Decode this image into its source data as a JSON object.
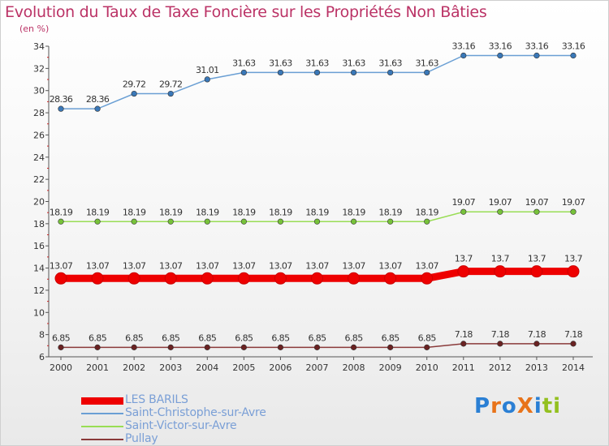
{
  "title": "Evolution du Taux de Taxe Foncière sur les Propriétés Non Bâties",
  "unit_label": "(en %)",
  "logo": {
    "text": "ProXiti",
    "letter_colors": [
      "#2a7fd4",
      "#e8731a",
      "#2a7fd4",
      "#e8731a",
      "#2a7fd4",
      "#93c01f",
      "#93c01f"
    ]
  },
  "chart_data": {
    "type": "line",
    "title": "Evolution du Taux de Taxe Foncière sur les Propriétés Non Bâties",
    "ylabel": "(en %)",
    "xlabel": "",
    "ylim": [
      6,
      34
    ],
    "yticks": [
      "6",
      "8",
      "10",
      "12",
      "14",
      "16",
      "18",
      "20",
      "22",
      "24",
      "26",
      "28",
      "30",
      "32",
      "34"
    ],
    "categories": [
      "2000",
      "2001",
      "2002",
      "2003",
      "2004",
      "2005",
      "2006",
      "2007",
      "2008",
      "2009",
      "2010",
      "2011",
      "2012",
      "2013",
      "2014"
    ],
    "series": [
      {
        "name": "LES BARILS",
        "color": "#ee0000",
        "values": [
          13.07,
          13.07,
          13.07,
          13.07,
          13.07,
          13.07,
          13.07,
          13.07,
          13.07,
          13.07,
          13.07,
          13.7,
          13.7,
          13.7,
          13.7
        ],
        "labels": [
          "13.07",
          "13.07",
          "13.07",
          "13.07",
          "13.07",
          "13.07",
          "13.07",
          "13.07",
          "13.07",
          "13.07",
          "13.07",
          "13.7",
          "13.7",
          "13.7",
          "13.7"
        ],
        "emphasis": true
      },
      {
        "name": "Saint-Christophe-sur-Avre",
        "color": "#6a9fd4",
        "marker": "#3a78b8",
        "values": [
          28.36,
          28.36,
          29.72,
          29.72,
          31.01,
          31.63,
          31.63,
          31.63,
          31.63,
          31.63,
          31.63,
          33.16,
          33.16,
          33.16,
          33.16
        ],
        "labels": [
          "28.36",
          "28.36",
          "29.72",
          "29.72",
          "31.01",
          "31.63",
          "31.63",
          "31.63",
          "31.63",
          "31.63",
          "31.63",
          "33.16",
          "33.16",
          "33.16",
          "33.16"
        ]
      },
      {
        "name": "Saint-Victor-sur-Avre",
        "color": "#99dd55",
        "marker": "#77c23a",
        "values": [
          18.19,
          18.19,
          18.19,
          18.19,
          18.19,
          18.19,
          18.19,
          18.19,
          18.19,
          18.19,
          18.19,
          19.07,
          19.07,
          19.07,
          19.07
        ],
        "labels": [
          "18.19",
          "18.19",
          "18.19",
          "18.19",
          "18.19",
          "18.19",
          "18.19",
          "18.19",
          "18.19",
          "18.19",
          "18.19",
          "19.07",
          "19.07",
          "19.07",
          "19.07"
        ]
      },
      {
        "name": "Pullay",
        "color": "#8a3a3a",
        "marker": "#6a2222",
        "values": [
          6.85,
          6.85,
          6.85,
          6.85,
          6.85,
          6.85,
          6.85,
          6.85,
          6.85,
          6.85,
          6.85,
          7.18,
          7.18,
          7.18,
          7.18
        ],
        "labels": [
          "6.85",
          "6.85",
          "6.85",
          "6.85",
          "6.85",
          "6.85",
          "6.85",
          "6.85",
          "6.85",
          "6.85",
          "6.85",
          "7.18",
          "7.18",
          "7.18",
          "7.18"
        ]
      }
    ],
    "legend": [
      "LES BARILS",
      "Saint-Christophe-sur-Avre",
      "Saint-Victor-sur-Avre",
      "Pullay"
    ],
    "legend_position": "bottom-left",
    "grid": false
  }
}
